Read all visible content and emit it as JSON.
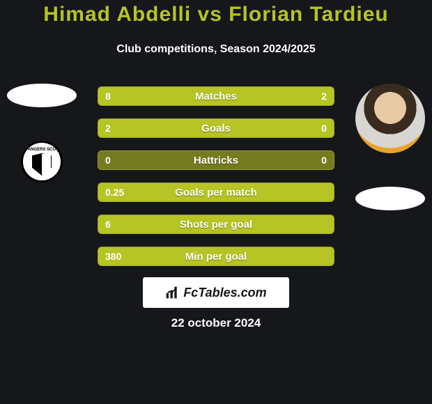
{
  "background_color": "#15171a",
  "title": {
    "text": "Himad Abdelli vs Florian Tardieu",
    "color": "#b6c425",
    "fontsize": 30
  },
  "subtitle": {
    "text": "Club competitions, Season 2024/2025",
    "color": "#ffffff",
    "fontsize": 16
  },
  "left_player": {
    "name": "Himad Abdelli",
    "placeholder_color": "#ffffff",
    "club_badge_label": "ANGERS SCO"
  },
  "right_player": {
    "name": "Florian Tardieu",
    "placeholder_color": "#ffffff"
  },
  "bars": {
    "track_color": "#747b21",
    "track_border": "#9aa22b",
    "fill_color": "#b6c425",
    "label_color": "#ffffff",
    "value_color": "#ffffff",
    "label_fontsize": 15,
    "value_fontsize": 14,
    "rows": [
      {
        "label": "Matches",
        "left_raw": 8,
        "right_raw": 2,
        "left_display": "8",
        "right_display": "2",
        "left_pct": 80,
        "right_pct": 20
      },
      {
        "label": "Goals",
        "left_raw": 2,
        "right_raw": 0,
        "left_display": "2",
        "right_display": "0",
        "left_pct": 100,
        "right_pct": 0
      },
      {
        "label": "Hattricks",
        "left_raw": 0,
        "right_raw": 0,
        "left_display": "0",
        "right_display": "0",
        "left_pct": 0,
        "right_pct": 0
      },
      {
        "label": "Goals per match",
        "left_raw": 0.25,
        "right_raw": 0,
        "left_display": "0.25",
        "right_display": "",
        "left_pct": 100,
        "right_pct": 0
      },
      {
        "label": "Shots per goal",
        "left_raw": 6,
        "right_raw": null,
        "left_display": "6",
        "right_display": "",
        "left_pct": 100,
        "right_pct": 0
      },
      {
        "label": "Min per goal",
        "left_raw": 380,
        "right_raw": null,
        "left_display": "380",
        "right_display": "",
        "left_pct": 100,
        "right_pct": 0
      }
    ]
  },
  "branding": {
    "text": "FcTables.com",
    "fontsize": 18,
    "bg_color": "#ffffff",
    "text_color": "#15171a",
    "icon_color": "#15171a"
  },
  "date": {
    "text": "22 october 2024",
    "color": "#ffffff",
    "fontsize": 17
  }
}
